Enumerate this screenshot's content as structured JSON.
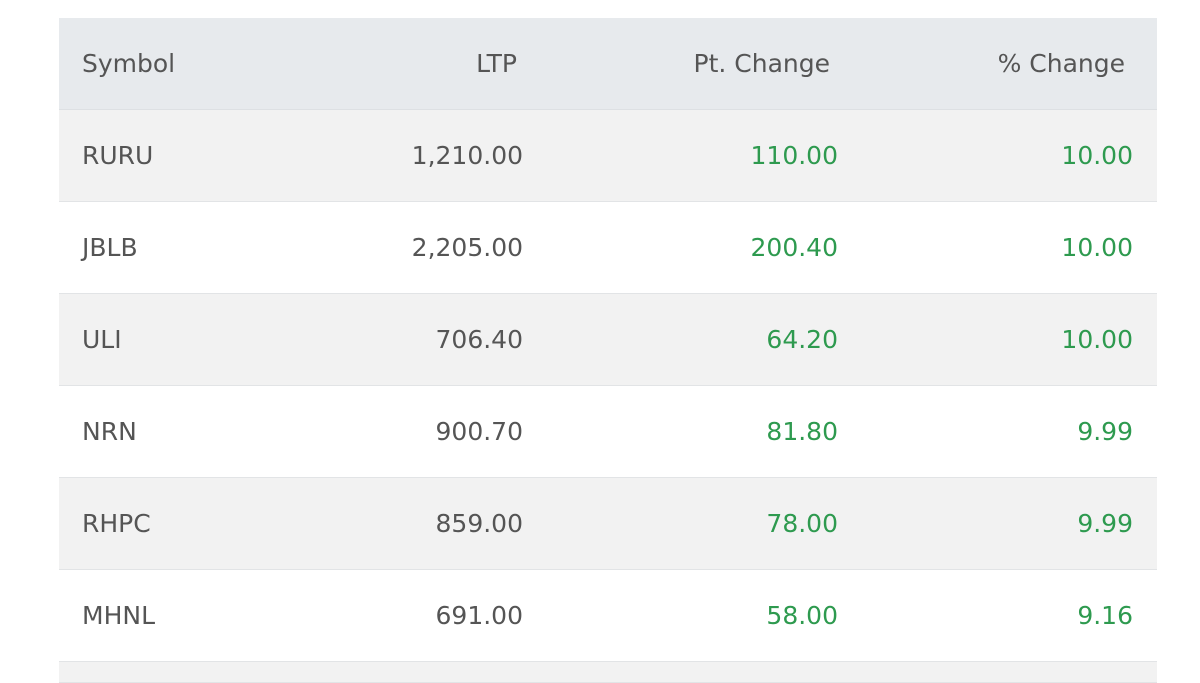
{
  "table": {
    "headers": [
      "Symbol",
      "LTP",
      "Pt. Change",
      "% Change"
    ],
    "rows": [
      {
        "symbol": "RURU",
        "ltp": "1,210.00",
        "pt_change": "110.00",
        "pct_change": "10.00"
      },
      {
        "symbol": "JBLB",
        "ltp": "2,205.00",
        "pt_change": "200.40",
        "pct_change": "10.00"
      },
      {
        "symbol": "ULI",
        "ltp": "706.40",
        "pt_change": "64.20",
        "pct_change": "10.00"
      },
      {
        "symbol": "NRN",
        "ltp": "900.70",
        "pt_change": "81.80",
        "pct_change": "9.99"
      },
      {
        "symbol": "RHPC",
        "ltp": "859.00",
        "pt_change": "78.00",
        "pct_change": "9.99"
      },
      {
        "symbol": "MHNL",
        "ltp": "691.00",
        "pt_change": "58.00",
        "pct_change": "9.16"
      }
    ]
  },
  "colors": {
    "positive": "#2e9a4f",
    "header_bg": "#e7eaed",
    "stripe": "#f2f2f2"
  }
}
